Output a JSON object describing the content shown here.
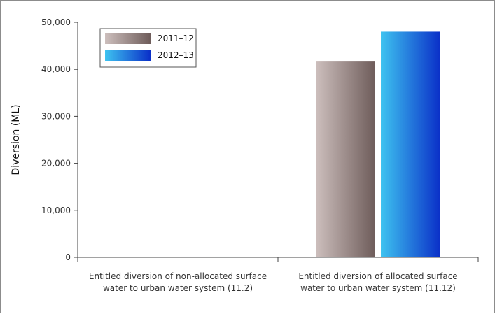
{
  "chart_data": {
    "type": "bar",
    "title": "",
    "xlabel": "",
    "ylabel": "Diversion (ML)",
    "ylim": [
      0,
      50000
    ],
    "yticks": [
      0,
      10000,
      20000,
      30000,
      40000,
      50000
    ],
    "ytick_labels": [
      "0",
      "10,000",
      "20,000",
      "30,000",
      "40,000",
      "50,000"
    ],
    "categories": [
      [
        "Entitled diversion of non-allocated surface",
        "water to urban water system (11.2)"
      ],
      [
        "Entitled diversion of allocated surface",
        "water to urban water system (11.12)"
      ]
    ],
    "series": [
      {
        "name": "2011–12",
        "values": [
          0,
          41800
        ],
        "colors": [
          "#cdbfbd",
          "#6e5c5a"
        ]
      },
      {
        "name": "2012–13",
        "values": [
          150,
          48000
        ],
        "colors": [
          "#3ec3f0",
          "#0a2fc8"
        ]
      }
    ],
    "grid": false,
    "legend": "top-left"
  }
}
